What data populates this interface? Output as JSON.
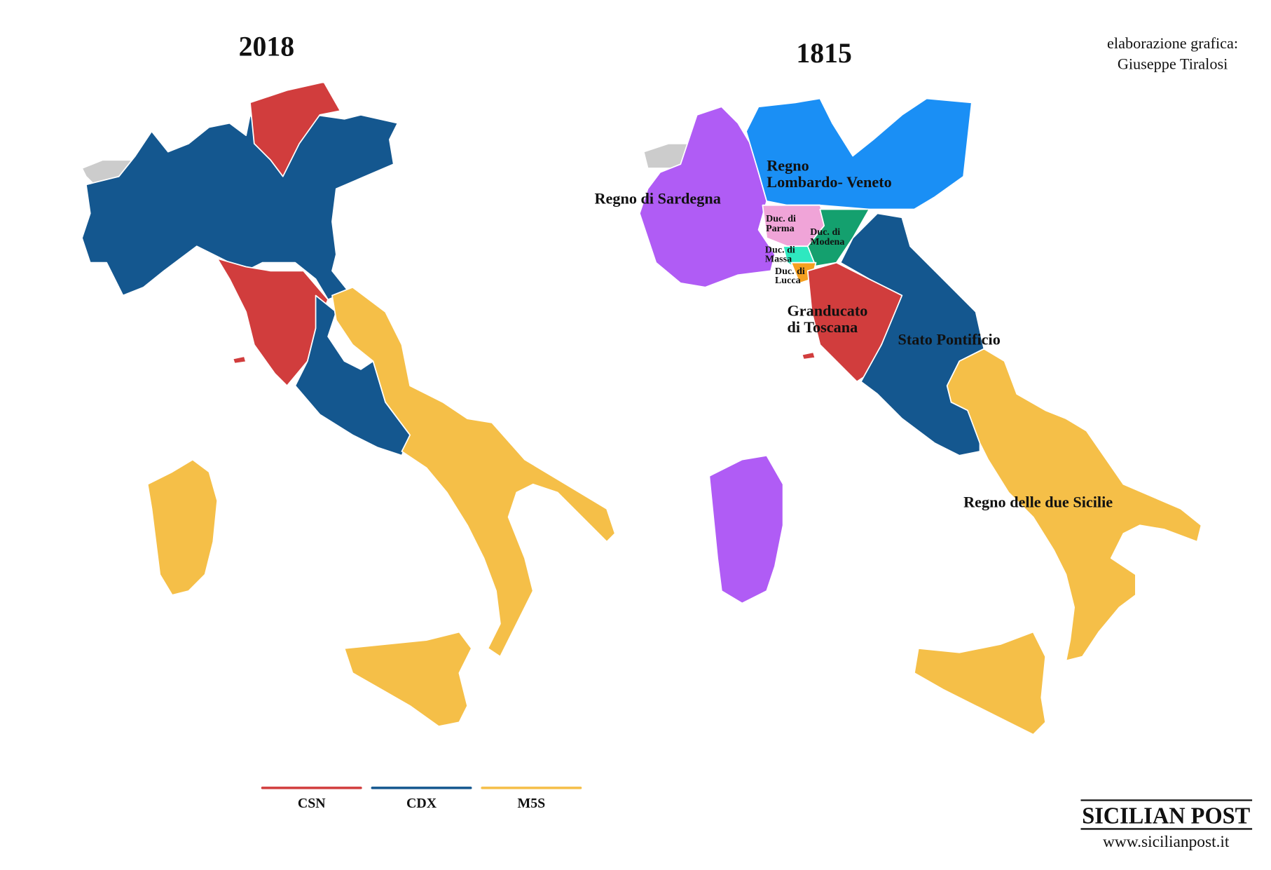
{
  "credit": [
    "elaborazione grafica:",
    "Giuseppe Tiralosi"
  ],
  "map_2018": {
    "title": "2018"
  },
  "map_1815": {
    "title": "1815",
    "regions": [
      {
        "label": [
          "Regno",
          "Lombardo- Veneto"
        ]
      },
      {
        "label": [
          "Regno di Sardegna"
        ]
      },
      {
        "label": [
          "Duc. di",
          "Parma"
        ]
      },
      {
        "label": [
          "Duc. di",
          "Modena"
        ]
      },
      {
        "label": [
          "Duc. di",
          "Massa"
        ]
      },
      {
        "label": [
          "Duc. di",
          "Lucca"
        ]
      },
      {
        "label": [
          "Granducato",
          "di Toscana"
        ]
      },
      {
        "label": [
          "Stato Pontificio"
        ]
      },
      {
        "label": [
          "Regno delle due Sicilie"
        ]
      }
    ]
  },
  "legend": [
    {
      "label": "CSN",
      "color": "#d13d3d"
    },
    {
      "label": "CDX",
      "color": "#14578f"
    },
    {
      "label": "M5S",
      "color": "#f5bf48"
    }
  ],
  "logo": {
    "name": "SICILIAN POST",
    "url": "www.sicilianpost.it"
  }
}
